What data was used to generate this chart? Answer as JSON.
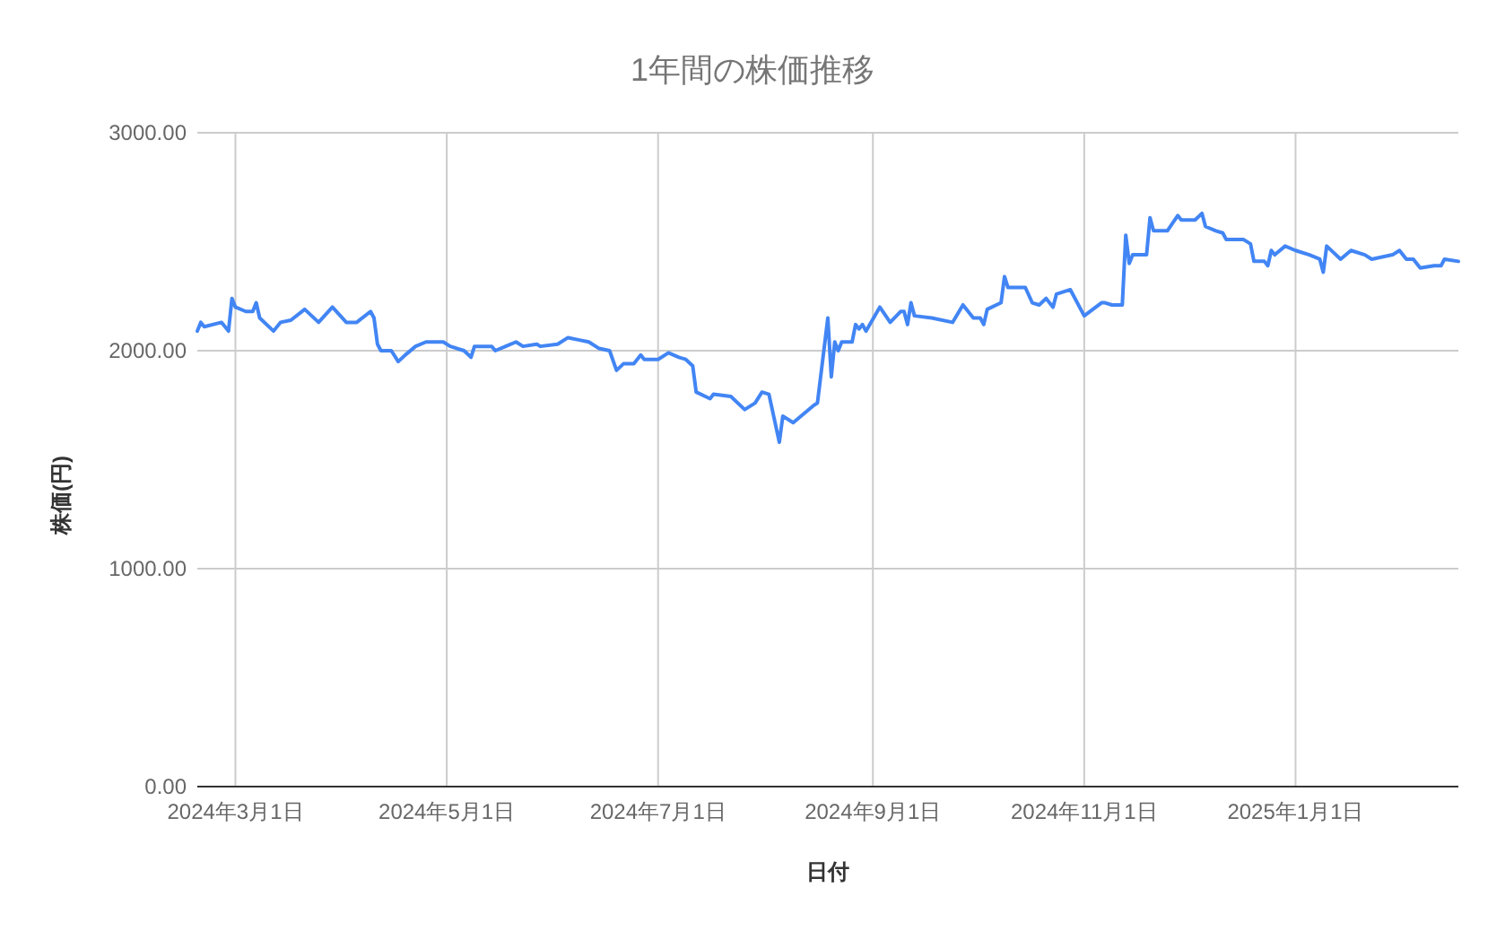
{
  "chart_data": {
    "type": "line",
    "title": "1年間の株価推移",
    "xlabel": "日付",
    "ylabel": "株価(円)",
    "x": [
      "2024-02-19",
      "2024-02-20",
      "2024-02-21",
      "2024-02-26",
      "2024-02-28",
      "2024-02-29",
      "2024-03-01",
      "2024-03-04",
      "2024-03-06",
      "2024-03-07",
      "2024-03-08",
      "2024-03-12",
      "2024-03-14",
      "2024-03-17",
      "2024-03-21",
      "2024-03-25",
      "2024-03-29",
      "2024-04-02",
      "2024-04-05",
      "2024-04-09",
      "2024-04-10",
      "2024-04-11",
      "2024-04-12",
      "2024-04-15",
      "2024-04-17",
      "2024-04-19",
      "2024-04-22",
      "2024-04-25",
      "2024-04-27",
      "2024-04-30",
      "2024-05-02",
      "2024-05-06",
      "2024-05-08",
      "2024-05-09",
      "2024-05-14",
      "2024-05-15",
      "2024-05-18",
      "2024-05-21",
      "2024-05-23",
      "2024-05-27",
      "2024-05-28",
      "2024-06-02",
      "2024-06-05",
      "2024-06-08",
      "2024-06-11",
      "2024-06-14",
      "2024-06-17",
      "2024-06-19",
      "2024-06-21",
      "2024-06-24",
      "2024-06-26",
      "2024-06-27",
      "2024-07-01",
      "2024-07-04",
      "2024-07-07",
      "2024-07-09",
      "2024-07-11",
      "2024-07-12",
      "2024-07-16",
      "2024-07-17",
      "2024-07-22",
      "2024-07-26",
      "2024-07-29",
      "2024-07-31",
      "2024-08-02",
      "2024-08-05",
      "2024-08-06",
      "2024-08-09",
      "2024-08-15",
      "2024-08-16",
      "2024-08-19",
      "2024-08-20",
      "2024-08-21",
      "2024-08-22",
      "2024-08-23",
      "2024-08-26",
      "2024-08-27",
      "2024-08-28",
      "2024-08-29",
      "2024-08-30",
      "2024-09-03",
      "2024-09-06",
      "2024-09-09",
      "2024-09-10",
      "2024-09-11",
      "2024-09-12",
      "2024-09-13",
      "2024-09-18",
      "2024-09-24",
      "2024-09-27",
      "2024-09-30",
      "2024-10-02",
      "2024-10-03",
      "2024-10-04",
      "2024-10-08",
      "2024-10-09",
      "2024-10-10",
      "2024-10-15",
      "2024-10-17",
      "2024-10-19",
      "2024-10-21",
      "2024-10-23",
      "2024-10-24",
      "2024-10-28",
      "2024-11-01",
      "2024-11-06",
      "2024-11-07",
      "2024-11-09",
      "2024-11-12",
      "2024-11-13",
      "2024-11-14",
      "2024-11-15",
      "2024-11-16",
      "2024-11-19",
      "2024-11-20",
      "2024-11-21",
      "2024-11-25",
      "2024-11-28",
      "2024-11-29",
      "2024-12-03",
      "2024-12-05",
      "2024-12-06",
      "2024-12-09",
      "2024-12-11",
      "2024-12-12",
      "2024-12-17",
      "2024-12-19",
      "2024-12-20",
      "2024-12-23",
      "2024-12-24",
      "2024-12-25",
      "2024-12-26",
      "2024-12-29",
      "2025-01-01",
      "2025-01-05",
      "2025-01-08",
      "2025-01-09",
      "2025-01-10",
      "2025-01-12",
      "2025-01-14",
      "2025-01-17",
      "2025-01-21",
      "2025-01-23",
      "2025-01-29",
      "2025-01-31",
      "2025-02-02",
      "2025-02-04",
      "2025-02-06",
      "2025-02-10",
      "2025-02-12",
      "2025-02-13",
      "2025-02-17"
    ],
    "series": [
      {
        "color": "#4285f4",
        "values": [
          2090,
          2130,
          2110,
          2130,
          2090,
          2240,
          2200,
          2180,
          2180,
          2220,
          2150,
          2090,
          2130,
          2140,
          2190,
          2130,
          2200,
          2130,
          2130,
          2180,
          2150,
          2030,
          2000,
          2000,
          1950,
          1980,
          2020,
          2040,
          2040,
          2040,
          2020,
          2000,
          1970,
          2020,
          2020,
          2000,
          2020,
          2040,
          2020,
          2030,
          2020,
          2030,
          2060,
          2050,
          2040,
          2010,
          2000,
          1910,
          1940,
          1940,
          1980,
          1960,
          1960,
          1990,
          1970,
          1960,
          1930,
          1810,
          1780,
          1800,
          1790,
          1730,
          1760,
          1810,
          1800,
          1580,
          1700,
          1670,
          1750,
          1760,
          2150,
          1880,
          2040,
          2000,
          2040,
          2040,
          2120,
          2100,
          2120,
          2090,
          2200,
          2130,
          2180,
          2180,
          2120,
          2220,
          2160,
          2150,
          2130,
          2210,
          2150,
          2150,
          2120,
          2190,
          2220,
          2340,
          2290,
          2290,
          2220,
          2210,
          2240,
          2200,
          2260,
          2280,
          2160,
          2220,
          2220,
          2210,
          2210,
          2530,
          2400,
          2440,
          2440,
          2440,
          2610,
          2550,
          2550,
          2620,
          2600,
          2600,
          2630,
          2570,
          2550,
          2540,
          2510,
          2510,
          2490,
          2410,
          2410,
          2390,
          2460,
          2440,
          2480,
          2460,
          2440,
          2420,
          2360,
          2480,
          2450,
          2420,
          2460,
          2440,
          2420,
          2440,
          2460,
          2420,
          2420,
          2380,
          2390,
          2390,
          2420,
          2410
        ]
      }
    ],
    "xlim": [
      "2024-02-19",
      "2025-02-17"
    ],
    "ylim": [
      0,
      3000
    ],
    "xticks": [
      {
        "value": "2024-03-01",
        "label": "2024年3月1日"
      },
      {
        "value": "2024-05-01",
        "label": "2024年5月1日"
      },
      {
        "value": "2024-07-01",
        "label": "2024年7月1日"
      },
      {
        "value": "2024-09-01",
        "label": "2024年9月1日"
      },
      {
        "value": "2024-11-01",
        "label": "2024年11月1日"
      },
      {
        "value": "2025-01-01",
        "label": "2025年1月1日"
      }
    ],
    "yticks": [
      {
        "value": 0,
        "label": "0.00"
      },
      {
        "value": 1000,
        "label": "1000.00"
      },
      {
        "value": 2000,
        "label": "2000.00"
      },
      {
        "value": 3000,
        "label": "3000.00"
      }
    ],
    "grid": true,
    "line_style": "solid"
  }
}
